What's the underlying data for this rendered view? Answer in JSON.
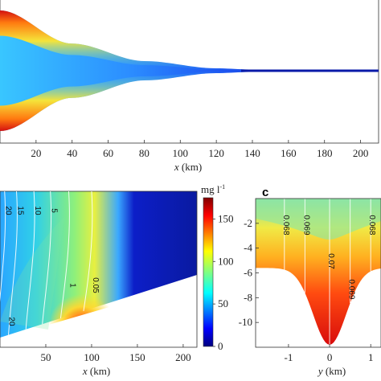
{
  "chart_data": [
    {
      "type": "heatmap",
      "panel": "top",
      "xlabel_var": "x",
      "xlabel_unit": " (km)",
      "xticks": [
        "20",
        "40",
        "60",
        "80",
        "100",
        "120",
        "140",
        "160",
        "180",
        "200"
      ],
      "xlim": [
        0,
        210
      ],
      "half_width_km": [
        [
          0,
          1.0
        ],
        [
          40,
          0.45
        ],
        [
          80,
          0.16
        ],
        [
          120,
          0.04
        ],
        [
          140,
          0.02
        ],
        [
          210,
          0.02
        ]
      ]
    },
    {
      "type": "heatmap",
      "panel": "bottom-left",
      "xlabel_var": "x",
      "xlabel_unit": " (km)",
      "xticks": [
        "50",
        "100",
        "150",
        "200"
      ],
      "xlim": [
        0,
        215
      ],
      "contours": [
        {
          "label": "20",
          "x": 5
        },
        {
          "label": "15",
          "x": 18
        },
        {
          "label": "10",
          "x": 37
        },
        {
          "label": "5",
          "x": 55
        },
        {
          "label": "1",
          "x": 75
        },
        {
          "label": "0.05",
          "x": 100
        },
        {
          "label": "20",
          "x": 10
        }
      ]
    },
    {
      "type": "heatmap",
      "panel": "c",
      "panel_label": "c",
      "xlabel_var": "y",
      "xlabel_unit": " (km)",
      "xticks": [
        "-1",
        "0",
        "1"
      ],
      "yticks": [
        "-2",
        "-4",
        "-6",
        "-8",
        "-10"
      ],
      "xlim": [
        -1.8,
        1.25
      ],
      "ylim": [
        -12,
        0
      ],
      "contours": [
        {
          "label": "0.068",
          "y": -1.1
        },
        {
          "label": "0.069",
          "y": -0.6
        },
        {
          "label": "0.07",
          "y": 0.0
        },
        {
          "label": "0.069",
          "y": 0.5
        },
        {
          "label": "0.068",
          "y": 1.0
        }
      ]
    }
  ],
  "colorbar": {
    "unit": "mg l",
    "unit_sup": "-1",
    "ticks": [
      "150",
      "100",
      "50",
      "0"
    ],
    "range": [
      0,
      175
    ]
  }
}
